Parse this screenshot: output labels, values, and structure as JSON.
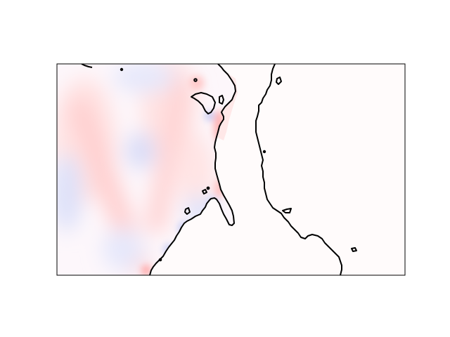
{
  "map": {
    "type": "filled-contour-with-coastlines",
    "colormap": "bwr",
    "land_fill": "#fffbfb",
    "coastline_color": "#000000",
    "frame_color": "#000000",
    "colors": {
      "strong_red": "#ffb3b3",
      "light_red": "#ffe2e2",
      "neutral": "#fdf7fb",
      "light_blue": "#e3e6fb",
      "strong_blue": "#c4c9f3"
    },
    "axes_visible": false,
    "title": "",
    "colorbar": false
  }
}
